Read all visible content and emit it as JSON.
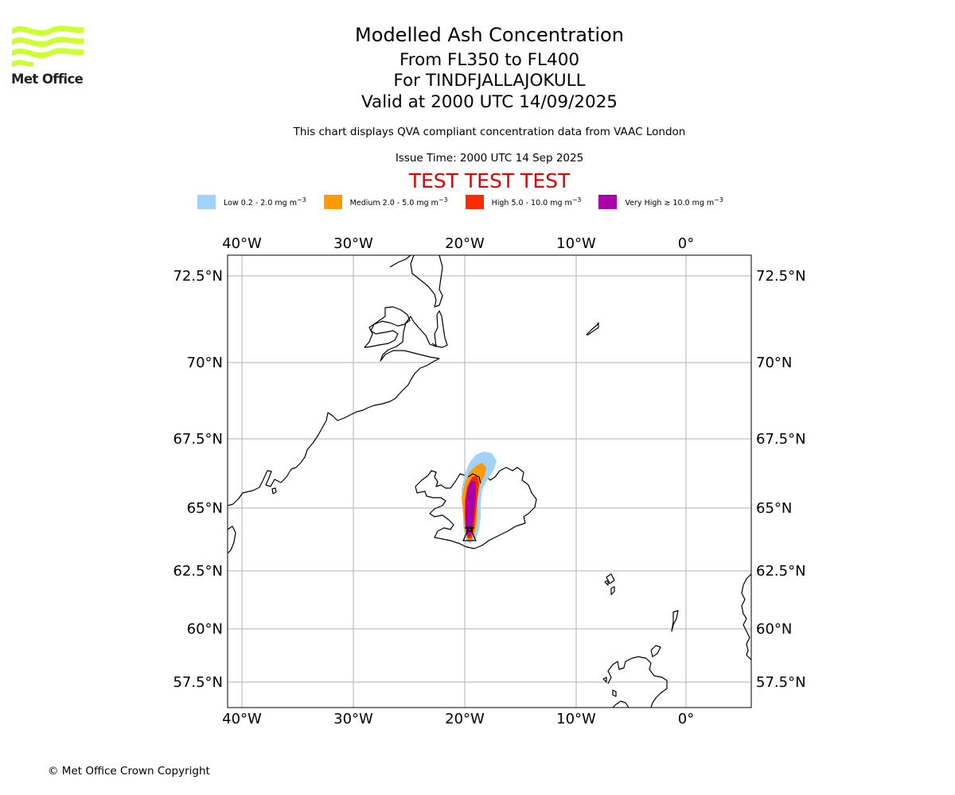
{
  "logo": {
    "name": "Met Office"
  },
  "title": {
    "main": "Modelled Ash Concentration",
    "levels": "From FL350 to FL400",
    "volcano": "For TINDFJALLAJOKULL",
    "valid": "Valid at 2000 UTC 14/09/2025"
  },
  "description": "This chart displays QVA compliant concentration data from VAAC London",
  "issue_time": "Issue Time: 2000 UTC 14 Sep 2025",
  "test_banner": "TEST TEST TEST",
  "legend": [
    {
      "label": "Low 0.2 - 2.0 mg m",
      "sup": "−3",
      "color": "#a0d2fa"
    },
    {
      "label": "Medium 2.0 - 5.0 mg m",
      "sup": "−3",
      "color": "#ff9a00"
    },
    {
      "label": "High 5.0 - 10.0 mg m",
      "sup": "−3",
      "color": "#ff2a00"
    },
    {
      "label": "Very High  ≥  10.0 mg m",
      "sup": "−3",
      "color": "#aa00aa"
    }
  ],
  "map": {
    "lon_ticks": [
      "40°W",
      "30°W",
      "20°W",
      "10°W",
      "0°"
    ],
    "lat_ticks": [
      "72.5°N",
      "70°N",
      "67.5°N",
      "65°N",
      "62.5°N",
      "60°N",
      "57.5°N"
    ],
    "grid": true,
    "coastline_color": "#000000",
    "volcano_marker": "volcano-triangle"
  },
  "copyright": "© Met Office Crown Copyright"
}
